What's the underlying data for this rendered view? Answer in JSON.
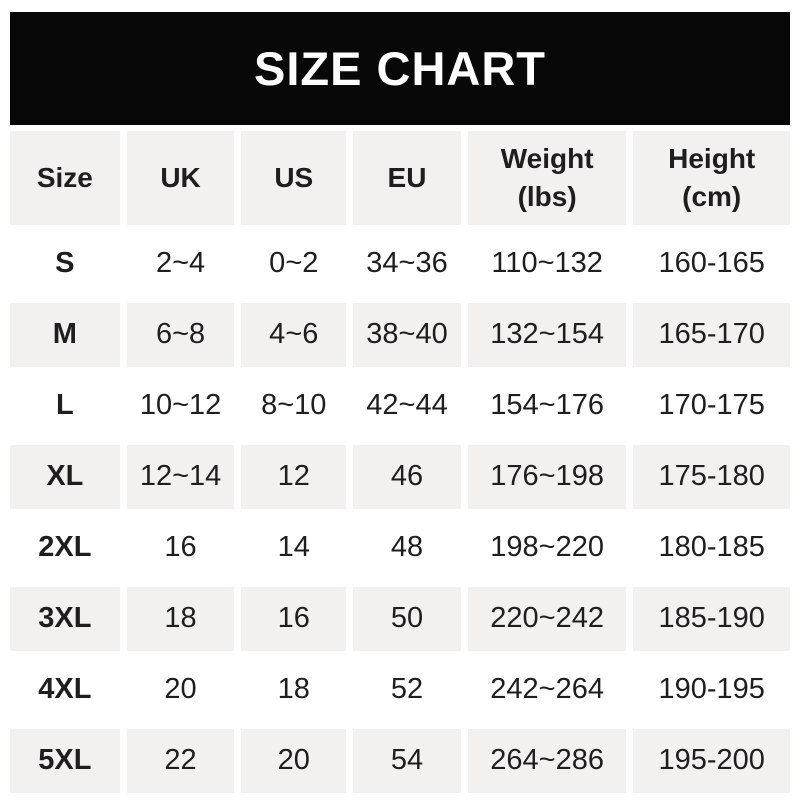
{
  "banner": {
    "title": "SIZE CHART"
  },
  "chart_data": {
    "type": "table",
    "title": "SIZE CHART",
    "columns": [
      "Size",
      "UK",
      "US",
      "EU",
      "Weight (lbs)",
      "Height (cm)"
    ],
    "column_headers_display": [
      "Size",
      "UK",
      "US",
      "EU",
      "Weight\n(lbs)",
      "Height\n(cm)"
    ],
    "rows": [
      [
        "S",
        "2~4",
        "0~2",
        "34~36",
        "110~132",
        "160-165"
      ],
      [
        "M",
        "6~8",
        "4~6",
        "38~40",
        "132~154",
        "165-170"
      ],
      [
        "L",
        "10~12",
        "8~10",
        "42~44",
        "154~176",
        "170-175"
      ],
      [
        "XL",
        "12~14",
        "12",
        "46",
        "176~198",
        "175-180"
      ],
      [
        "2XL",
        "16",
        "14",
        "48",
        "198~220",
        "180-185"
      ],
      [
        "3XL",
        "18",
        "16",
        "50",
        "220~242",
        "185-190"
      ],
      [
        "4XL",
        "20",
        "18",
        "52",
        "242~264",
        "190-195"
      ],
      [
        "5XL",
        "22",
        "20",
        "54",
        "264~286",
        "195-200"
      ]
    ]
  },
  "colors": {
    "banner_bg": "#080808",
    "banner_text": "#ffffff",
    "row_shaded_bg": "#f2f1ef",
    "row_plain_bg": "#ffffff",
    "text": "#1e1e1e"
  }
}
